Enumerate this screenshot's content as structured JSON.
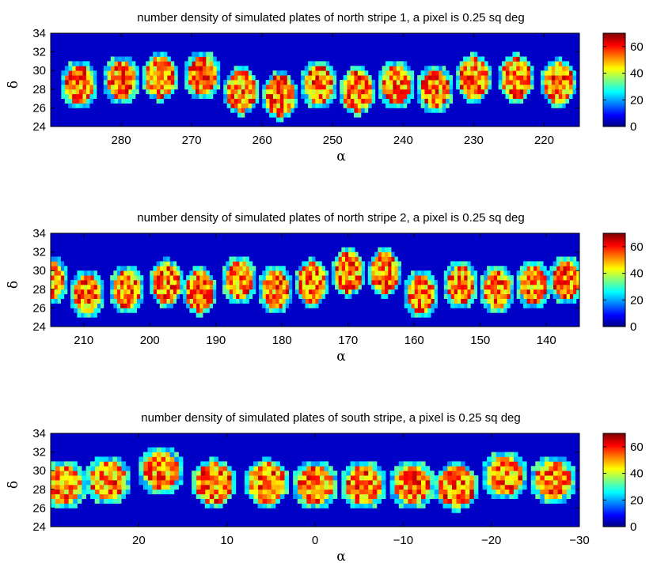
{
  "chart_data": [
    {
      "type": "heatmap",
      "title": "number density of simulated plates of north stripe 1, a pixel is 0.25 sq deg",
      "xlabel": "α",
      "ylabel": "δ",
      "xlim": [
        290,
        215
      ],
      "ylim": [
        24,
        34
      ],
      "xticks": [
        280,
        270,
        260,
        250,
        240,
        230,
        220
      ],
      "yticks": [
        24,
        26,
        28,
        30,
        32,
        34
      ],
      "colorbar_ticks": [
        0,
        20,
        40,
        60
      ],
      "clim": [
        0,
        70
      ],
      "plates": [
        {
          "ra": 286,
          "dec": 28.5
        },
        {
          "ra": 280,
          "dec": 29.0
        },
        {
          "ra": 274.5,
          "dec": 29.3
        },
        {
          "ra": 268.5,
          "dec": 29.5
        },
        {
          "ra": 263,
          "dec": 27.8
        },
        {
          "ra": 257.5,
          "dec": 27.3
        },
        {
          "ra": 252,
          "dec": 28.5
        },
        {
          "ra": 246.5,
          "dec": 27.8
        },
        {
          "ra": 241,
          "dec": 28.5
        },
        {
          "ra": 235.5,
          "dec": 28.0
        },
        {
          "ra": 230,
          "dec": 29.2
        },
        {
          "ra": 224,
          "dec": 29.2
        },
        {
          "ra": 218,
          "dec": 28.7
        }
      ]
    },
    {
      "type": "heatmap",
      "title": "number density of simulated plates of north stripe 2, a pixel is 0.25 sq deg",
      "xlabel": "α",
      "ylabel": "δ",
      "xlim": [
        215,
        135
      ],
      "ylim": [
        24,
        34
      ],
      "xticks": [
        210,
        200,
        190,
        180,
        170,
        160,
        150,
        140
      ],
      "yticks": [
        24,
        26,
        28,
        30,
        32,
        34
      ],
      "colorbar_ticks": [
        0,
        20,
        40,
        60
      ],
      "clim": [
        0,
        70
      ],
      "plates": [
        {
          "ra": 215,
          "dec": 29.0
        },
        {
          "ra": 209.5,
          "dec": 27.5
        },
        {
          "ra": 203.5,
          "dec": 28.0
        },
        {
          "ra": 197.5,
          "dec": 28.7
        },
        {
          "ra": 192.5,
          "dec": 27.8
        },
        {
          "ra": 186.5,
          "dec": 29.0
        },
        {
          "ra": 181,
          "dec": 28.0
        },
        {
          "ra": 175.5,
          "dec": 28.7
        },
        {
          "ra": 170,
          "dec": 29.8
        },
        {
          "ra": 164.5,
          "dec": 29.8
        },
        {
          "ra": 159,
          "dec": 27.5
        },
        {
          "ra": 153,
          "dec": 28.5
        },
        {
          "ra": 147.5,
          "dec": 28.0
        },
        {
          "ra": 142,
          "dec": 28.5
        },
        {
          "ra": 137,
          "dec": 29.0
        }
      ]
    },
    {
      "type": "heatmap",
      "title": "number density of simulated plates of south stripe, a pixel is 0.25 sq deg",
      "xlabel": "α",
      "ylabel": "δ",
      "xlim": [
        30,
        -30
      ],
      "ylim": [
        24,
        34
      ],
      "xticks": [
        20,
        10,
        0,
        -10,
        -20,
        -30
      ],
      "xtick_labels": [
        "20",
        "10",
        "0",
        "−10",
        "−20",
        "−30"
      ],
      "yticks": [
        24,
        26,
        28,
        30,
        32,
        34
      ],
      "colorbar_ticks": [
        0,
        20,
        40,
        60
      ],
      "clim": [
        0,
        70
      ],
      "plates": [
        {
          "ra": 28.5,
          "dec": 28.5
        },
        {
          "ra": 23.5,
          "dec": 29.0
        },
        {
          "ra": 17.5,
          "dec": 30.0
        },
        {
          "ra": 11.5,
          "dec": 28.7
        },
        {
          "ra": 5.5,
          "dec": 28.7
        },
        {
          "ra": 0,
          "dec": 28.5
        },
        {
          "ra": -5.5,
          "dec": 28.5
        },
        {
          "ra": -11,
          "dec": 28.5
        },
        {
          "ra": -16,
          "dec": 28.3
        },
        {
          "ra": -21.5,
          "dec": 29.5
        },
        {
          "ra": -27,
          "dec": 29.0
        }
      ]
    }
  ]
}
